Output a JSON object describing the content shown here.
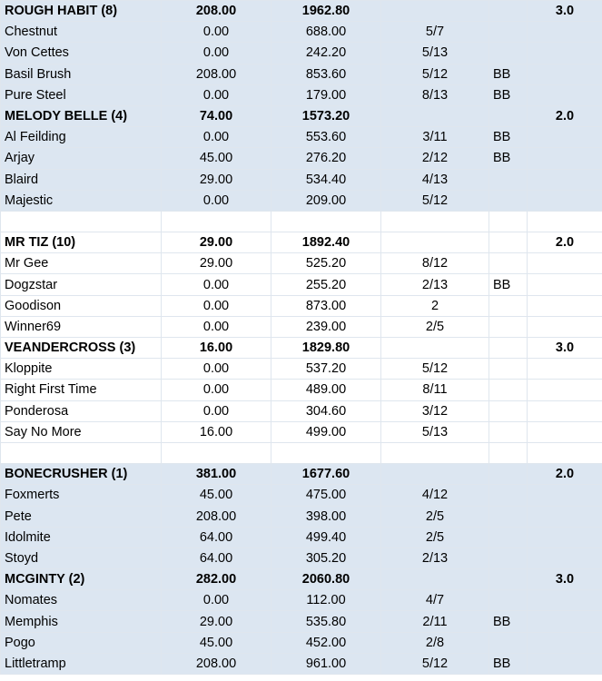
{
  "sheet": {
    "rows": [
      {
        "cells": [
          "ROUGH HABIT (8)",
          "208.00",
          "1962.80",
          "",
          "",
          "3.0"
        ],
        "team": true,
        "shade": "blue"
      },
      {
        "cells": [
          "Chestnut",
          "0.00",
          "688.00",
          "5/7",
          "",
          ""
        ],
        "team": false,
        "shade": "blue"
      },
      {
        "cells": [
          "Von Cettes",
          "0.00",
          "242.20",
          "5/13",
          "",
          ""
        ],
        "team": false,
        "shade": "blue"
      },
      {
        "cells": [
          "Basil Brush",
          "208.00",
          "853.60",
          "5/12",
          "BB",
          ""
        ],
        "team": false,
        "shade": "blue"
      },
      {
        "cells": [
          "Pure Steel",
          "0.00",
          "179.00",
          "8/13",
          "BB",
          ""
        ],
        "team": false,
        "shade": "blue"
      },
      {
        "cells": [
          "MELODY BELLE (4)",
          "74.00",
          "1573.20",
          "",
          "",
          "2.0"
        ],
        "team": true,
        "shade": "blue"
      },
      {
        "cells": [
          "Al Feilding",
          "0.00",
          "553.60",
          "3/11",
          "BB",
          ""
        ],
        "team": false,
        "shade": "blue"
      },
      {
        "cells": [
          "Arjay",
          "45.00",
          "276.20",
          "2/12",
          "BB",
          ""
        ],
        "team": false,
        "shade": "blue"
      },
      {
        "cells": [
          "Blaird",
          "29.00",
          "534.40",
          "4/13",
          "",
          ""
        ],
        "team": false,
        "shade": "blue"
      },
      {
        "cells": [
          "Majestic",
          "0.00",
          "209.00",
          "5/12",
          "",
          ""
        ],
        "team": false,
        "shade": "blue"
      },
      {
        "cells": [
          "",
          "",
          "",
          "",
          "",
          ""
        ],
        "team": false,
        "shade": "white"
      },
      {
        "cells": [
          "MR TIZ (10)",
          "29.00",
          "1892.40",
          "",
          "",
          "2.0"
        ],
        "team": true,
        "shade": "white"
      },
      {
        "cells": [
          "Mr Gee",
          "29.00",
          "525.20",
          "8/12",
          "",
          ""
        ],
        "team": false,
        "shade": "white"
      },
      {
        "cells": [
          "Dogzstar",
          "0.00",
          "255.20",
          "2/13",
          "BB",
          ""
        ],
        "team": false,
        "shade": "white"
      },
      {
        "cells": [
          "Goodison",
          "0.00",
          "873.00",
          "2",
          "",
          ""
        ],
        "team": false,
        "shade": "white"
      },
      {
        "cells": [
          "Winner69",
          "0.00",
          "239.00",
          "2/5",
          "",
          ""
        ],
        "team": false,
        "shade": "white"
      },
      {
        "cells": [
          "VEANDERCROSS (3)",
          "16.00",
          "1829.80",
          "",
          "",
          "3.0"
        ],
        "team": true,
        "shade": "white"
      },
      {
        "cells": [
          "Kloppite",
          "0.00",
          "537.20",
          "5/12",
          "",
          ""
        ],
        "team": false,
        "shade": "white"
      },
      {
        "cells": [
          "Right First Time",
          "0.00",
          "489.00",
          "8/11",
          "",
          ""
        ],
        "team": false,
        "shade": "white"
      },
      {
        "cells": [
          "Ponderosa",
          "0.00",
          "304.60",
          "3/12",
          "",
          ""
        ],
        "team": false,
        "shade": "white"
      },
      {
        "cells": [
          "Say No More",
          "16.00",
          "499.00",
          "5/13",
          "",
          ""
        ],
        "team": false,
        "shade": "white"
      },
      {
        "cells": [
          "",
          "",
          "",
          "",
          "",
          ""
        ],
        "team": false,
        "shade": "white"
      },
      {
        "cells": [
          "BONECRUSHER (1)",
          "381.00",
          "1677.60",
          "",
          "",
          "2.0"
        ],
        "team": true,
        "shade": "blue"
      },
      {
        "cells": [
          "Foxmerts",
          "45.00",
          "475.00",
          "4/12",
          "",
          ""
        ],
        "team": false,
        "shade": "blue"
      },
      {
        "cells": [
          "Pete",
          "208.00",
          "398.00",
          "2/5",
          "",
          ""
        ],
        "team": false,
        "shade": "blue"
      },
      {
        "cells": [
          "Idolmite",
          "64.00",
          "499.40",
          "2/5",
          "",
          ""
        ],
        "team": false,
        "shade": "blue"
      },
      {
        "cells": [
          "Stoyd",
          "64.00",
          "305.20",
          "2/13",
          "",
          ""
        ],
        "team": false,
        "shade": "blue"
      },
      {
        "cells": [
          "MCGINTY (2)",
          "282.00",
          "2060.80",
          "",
          "",
          "3.0"
        ],
        "team": true,
        "shade": "blue"
      },
      {
        "cells": [
          "Nomates",
          "0.00",
          "112.00",
          "4/7",
          "",
          ""
        ],
        "team": false,
        "shade": "blue"
      },
      {
        "cells": [
          "Memphis",
          "29.00",
          "535.80",
          "2/11",
          "BB",
          ""
        ],
        "team": false,
        "shade": "blue"
      },
      {
        "cells": [
          "Pogo",
          "45.00",
          "452.00",
          "2/8",
          "",
          ""
        ],
        "team": false,
        "shade": "blue"
      },
      {
        "cells": [
          "Littletramp",
          "208.00",
          "961.00",
          "5/12",
          "BB",
          ""
        ],
        "team": false,
        "shade": "blue"
      }
    ]
  },
  "colors": {
    "blue_band": "#dce6f1",
    "white_band": "#ffffff",
    "grid_line": "#dfe6ee"
  }
}
